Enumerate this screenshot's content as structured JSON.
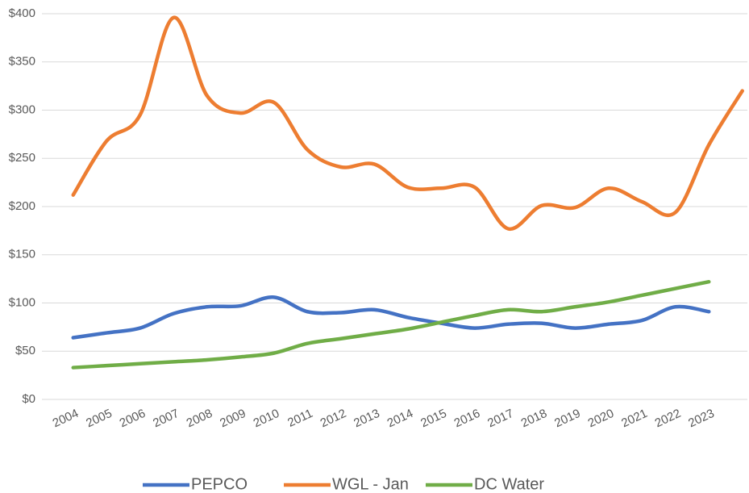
{
  "chart_data": {
    "type": "line",
    "categories": [
      "2004",
      "2005",
      "2006",
      "2007",
      "2008",
      "2009",
      "2010",
      "2011",
      "2012",
      "2013",
      "2014",
      "2015",
      "2016",
      "2017",
      "2018",
      "2019",
      "2020",
      "2021",
      "2022",
      "2023",
      null
    ],
    "series": [
      {
        "name": "PEPCO",
        "color": "#4472c4",
        "values": [
          64,
          69,
          74,
          89,
          96,
          97,
          106,
          91,
          90,
          93,
          85,
          79,
          74,
          78,
          79,
          74,
          78,
          82,
          96,
          91,
          null
        ]
      },
      {
        "name": "WGL - Jan",
        "color": "#ed7d31",
        "values": [
          212,
          268,
          295,
          396,
          315,
          297,
          308,
          259,
          241,
          244,
          220,
          219,
          220,
          177,
          201,
          199,
          219,
          205,
          194,
          264,
          320
        ]
      },
      {
        "name": "DC Water",
        "color": "#70ad47",
        "values": [
          33,
          35,
          37,
          39,
          41,
          44,
          48,
          58,
          63,
          68,
          73,
          80,
          87,
          93,
          91,
          96,
          101,
          108,
          115,
          122,
          null
        ]
      }
    ],
    "ylim": [
      0,
      400
    ],
    "yticks": [
      {
        "value": 0,
        "label": "$0"
      },
      {
        "value": 50,
        "label": "$50"
      },
      {
        "value": 100,
        "label": "$100"
      },
      {
        "value": 150,
        "label": "$150"
      },
      {
        "value": 200,
        "label": "$200"
      },
      {
        "value": 250,
        "label": "$250"
      },
      {
        "value": 300,
        "label": "$300"
      },
      {
        "value": 350,
        "label": "$350"
      },
      {
        "value": 400,
        "label": "$400"
      }
    ],
    "grid": true,
    "legend": "bottom"
  }
}
